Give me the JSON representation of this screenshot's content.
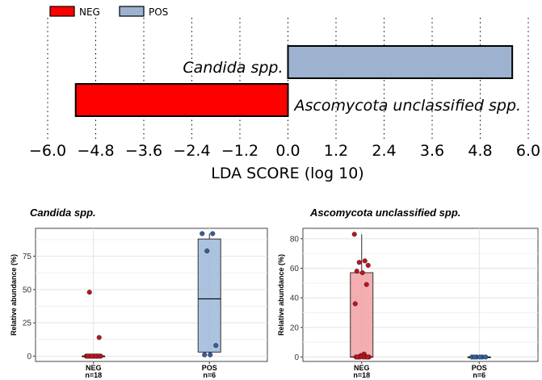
{
  "chart_data": [
    {
      "type": "bar",
      "orientation": "horizontal",
      "legend": {
        "position": "top-left",
        "items": [
          {
            "label": "NEG",
            "color": "#ff0000"
          },
          {
            "label": "POS",
            "color": "#9cb2cf"
          }
        ]
      },
      "bars": [
        {
          "label": "Candida spp.",
          "value": 5.6,
          "group": "POS",
          "color": "#9cb2cf"
        },
        {
          "label": "Ascomycota unclassified spp.",
          "value": -5.3,
          "group": "NEG",
          "color": "#ff0000"
        }
      ],
      "xlabel": "LDA SCORE (log 10)",
      "xticks": [
        "−6.0",
        "−4.8",
        "−3.6",
        "−2.4",
        "−1.2",
        "0.0",
        "1.2",
        "2.4",
        "3.6",
        "4.8",
        "6.0"
      ],
      "xlim": [
        -6.0,
        6.0
      ],
      "grid": "vertical dotted"
    },
    {
      "type": "box",
      "title": "Candida spp.",
      "ylabel": "Relative abundance (%)",
      "yticks": [
        "0",
        "25",
        "50",
        "75"
      ],
      "ylim": [
        -4,
        96
      ],
      "groups": [
        {
          "label": "NEG",
          "n_label": "n=18",
          "color": "#e8323a",
          "box": {
            "q1": 0,
            "median": 0,
            "q3": 0,
            "whisker_low": 0,
            "whisker_high": 0
          },
          "points": [
            0,
            0,
            0,
            0,
            0,
            0,
            0,
            0,
            0,
            0,
            0,
            0,
            0,
            0,
            0,
            0,
            14,
            48
          ]
        },
        {
          "label": "POS",
          "n_label": "n=6",
          "color": "#9cb8d8",
          "box": {
            "q1": 3,
            "median": 43,
            "q3": 88,
            "whisker_low": 0,
            "whisker_high": 92
          },
          "points": [
            92,
            92,
            79,
            8,
            1,
            1
          ]
        }
      ]
    },
    {
      "type": "box",
      "title": "Ascomycota unclassified spp.",
      "ylabel": "Relative abundance (%)",
      "yticks": [
        "0",
        "20",
        "40",
        "60",
        "80"
      ],
      "ylim": [
        -3,
        87
      ],
      "groups": [
        {
          "label": "NEG",
          "n_label": "n=18",
          "color": "#f2a0a4",
          "box": {
            "q1": 0,
            "median": 0,
            "q3": 57,
            "whisker_low": 0,
            "whisker_high": 83
          },
          "points": [
            83,
            65,
            64,
            62,
            58,
            57,
            49,
            36,
            2,
            1,
            0,
            0,
            0,
            0,
            0,
            0,
            0,
            0
          ]
        },
        {
          "label": "POS",
          "n_label": "n=6",
          "color": "#9cb8d8",
          "box": {
            "q1": 0,
            "median": 0,
            "q3": 0,
            "whisker_low": 0,
            "whisker_high": 0
          },
          "points": [
            0,
            0,
            0,
            0,
            0,
            0
          ]
        }
      ]
    }
  ]
}
